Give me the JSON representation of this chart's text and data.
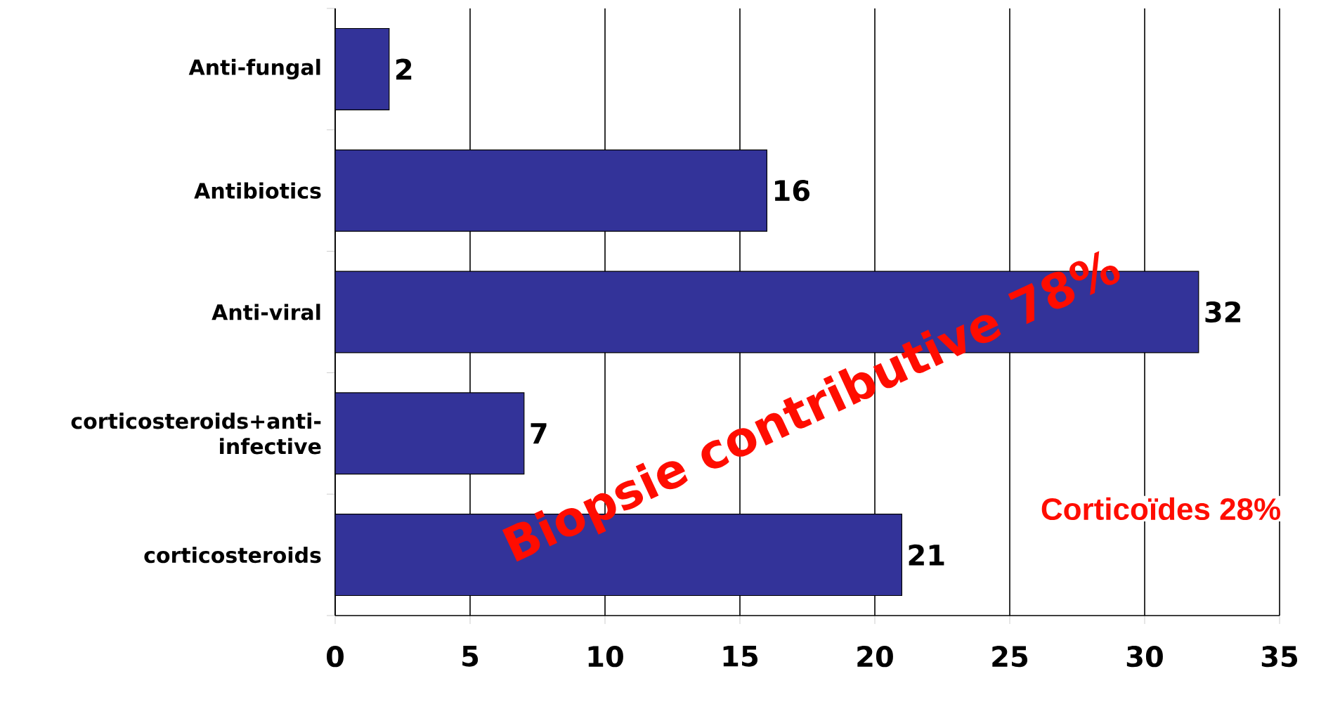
{
  "chart_data": {
    "type": "bar",
    "orientation": "horizontal",
    "categories": [
      "Anti-fungal",
      "Antibiotics",
      "Anti-viral",
      "corticosteroids+anti-infective",
      "corticosteroids"
    ],
    "values": [
      2,
      16,
      32,
      7,
      21
    ],
    "color": "#333399",
    "xlim": [
      0,
      35
    ],
    "xticks": [
      0,
      5,
      10,
      15,
      20,
      25,
      30,
      35
    ],
    "grid": "x",
    "data_labels": true,
    "annotations": [
      "Biopsie contributive 78%",
      "Corticoïdes 28%"
    ]
  }
}
